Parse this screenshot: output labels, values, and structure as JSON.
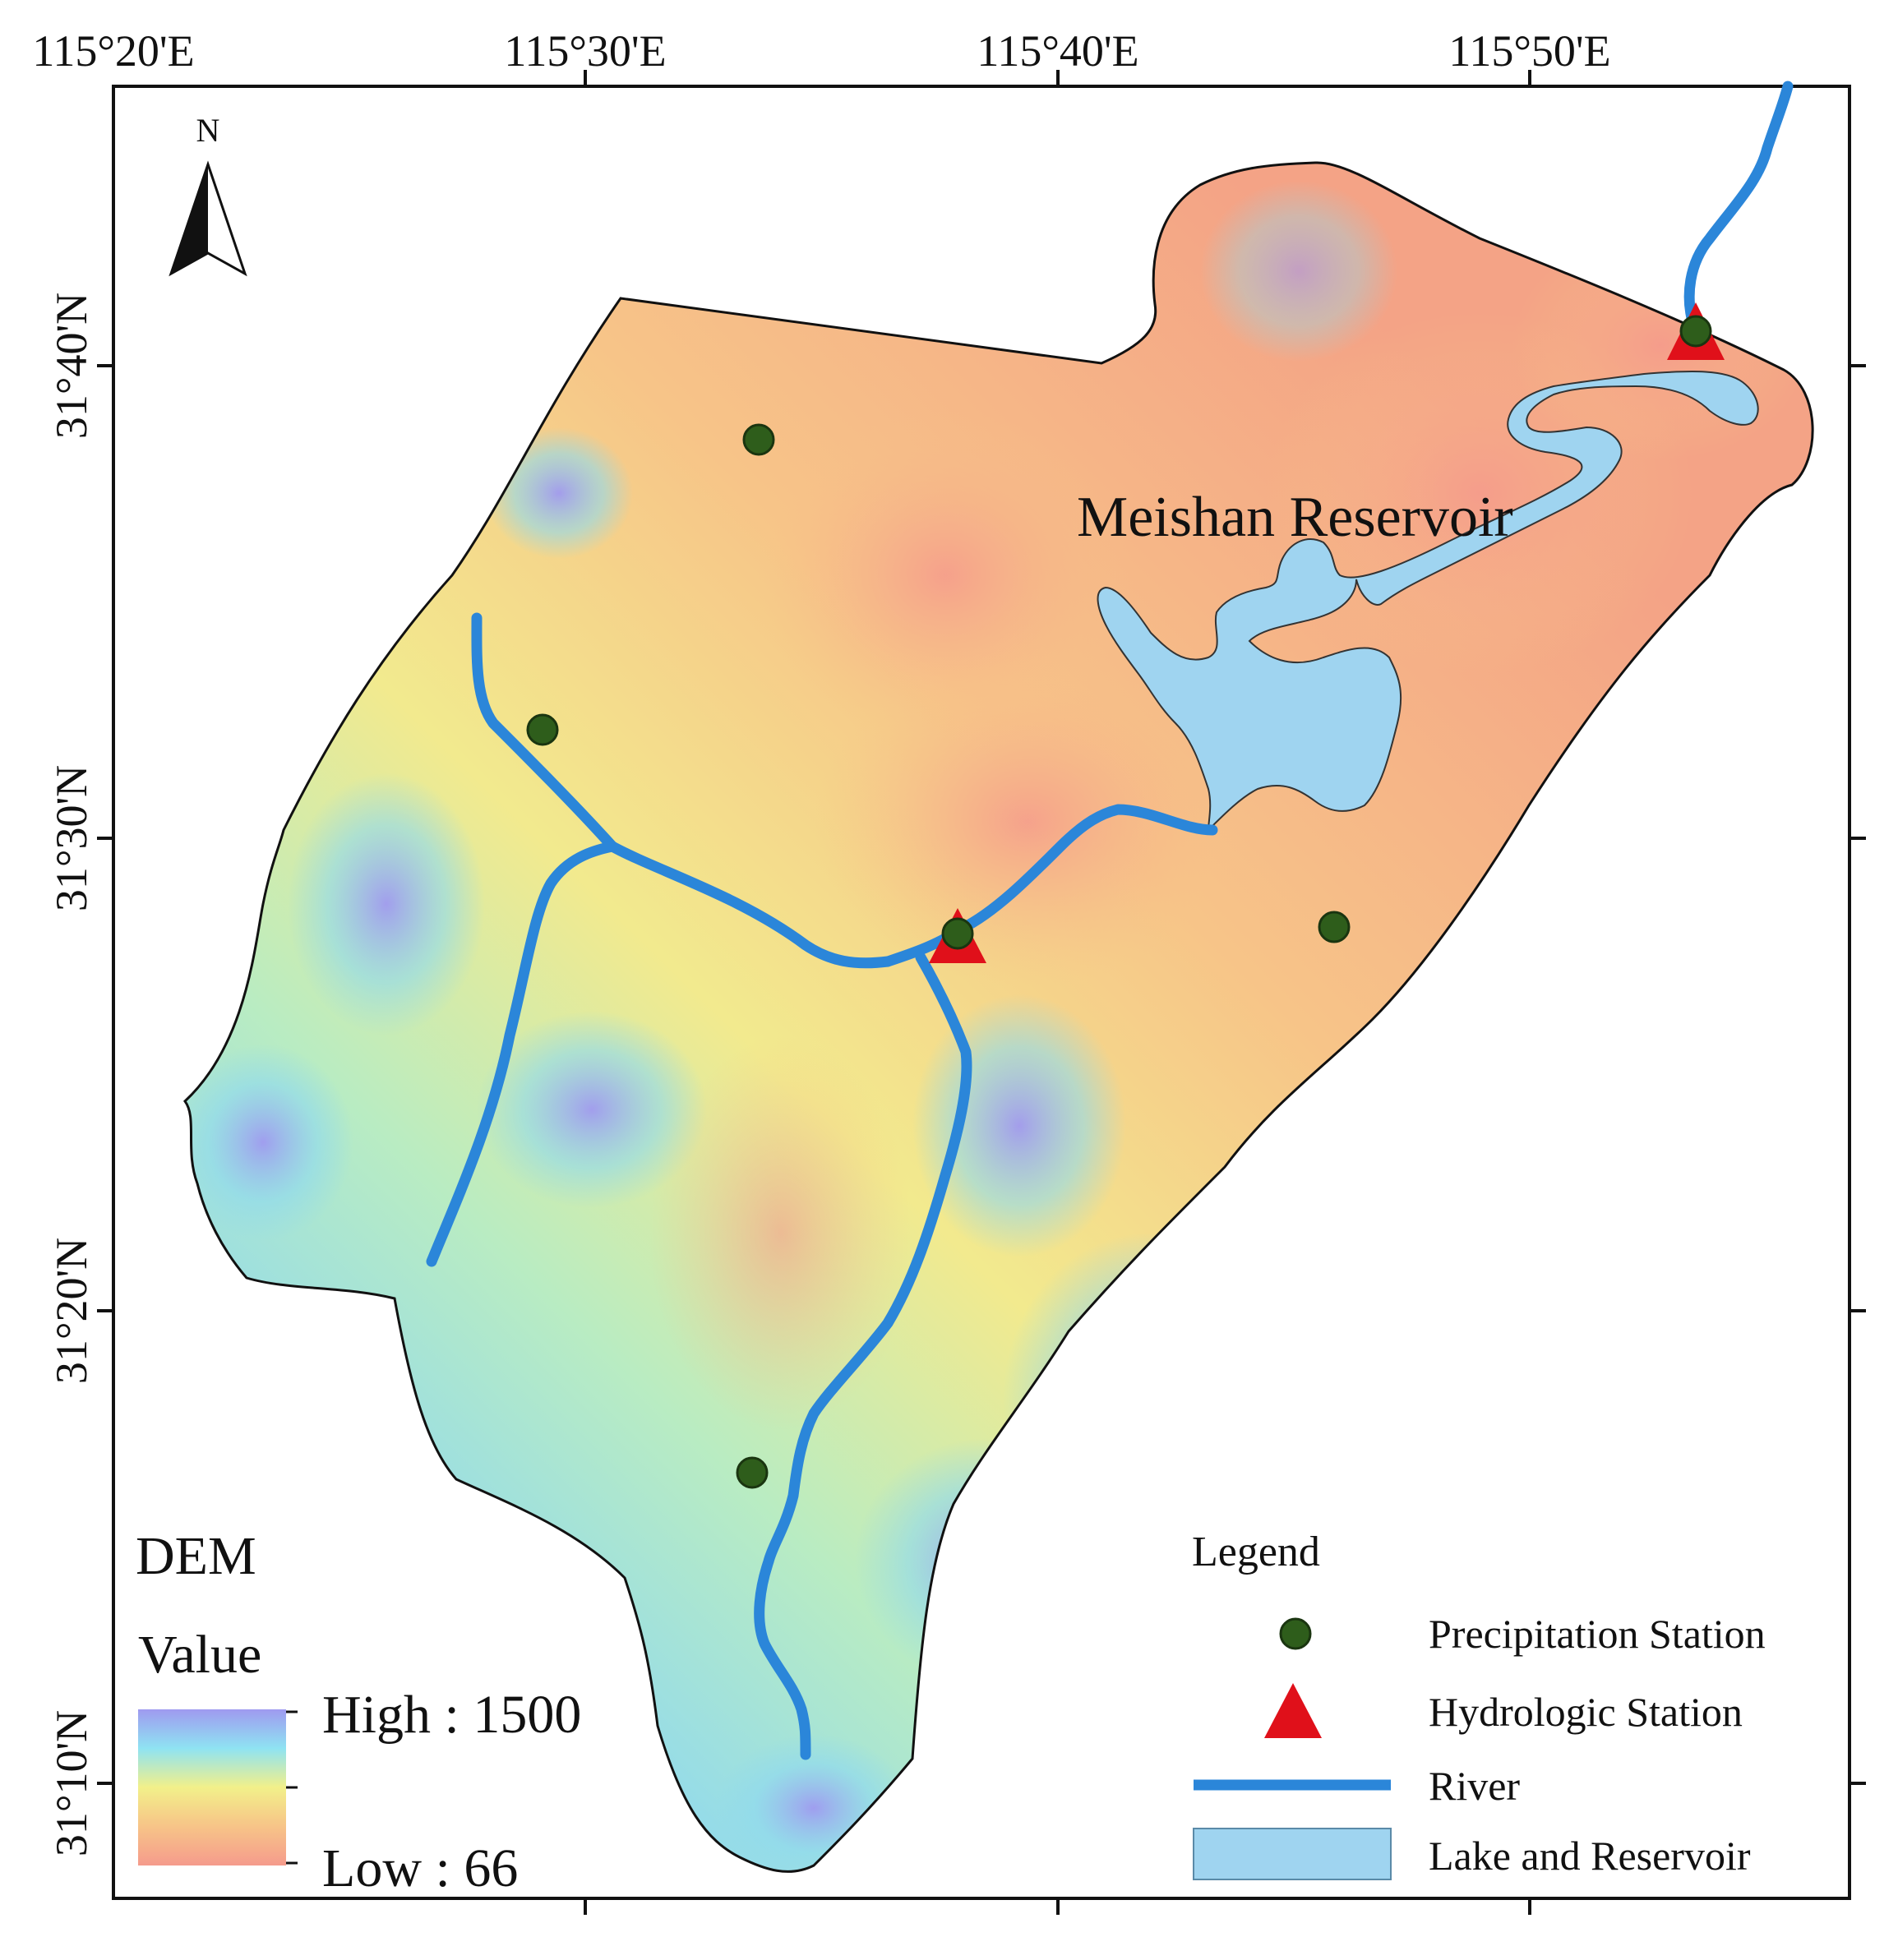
{
  "map": {
    "north_arrow_label": "N",
    "place_label": "Meishan Reservoir",
    "longitude_ticks": [
      "115°20'E",
      "115°30'E",
      "115°40'E",
      "115°50'E"
    ],
    "latitude_ticks": [
      "31°40'N",
      "31°30'N",
      "31°20'N",
      "31°10'N"
    ]
  },
  "dem_legend": {
    "title_line1": "DEM",
    "title_line2": "Value",
    "high_label": "High : 1500",
    "low_label": "Low : 66",
    "high_color": "#9f9af0",
    "mid_color": "#f2f08a",
    "low_color": "#f59b8c"
  },
  "legend": {
    "title": "Legend",
    "items": [
      {
        "label": "Precipitation Station",
        "icon": "green-dot-icon",
        "color": "#2e5d1b"
      },
      {
        "label": "Hydrologic Station",
        "icon": "red-triangle-icon",
        "color": "#e0101a"
      },
      {
        "label": "River",
        "icon": "blue-line-icon",
        "color": "#2b86d9"
      },
      {
        "label": "Lake and Reservoir",
        "icon": "light-blue-rect-icon",
        "color": "#9fd4f0"
      }
    ]
  },
  "colors": {
    "river": "#2b86d9",
    "lake": "#9fd4f0",
    "precip_station": "#2e5d1b",
    "hydro_station": "#e0101a",
    "frame": "#111111"
  }
}
